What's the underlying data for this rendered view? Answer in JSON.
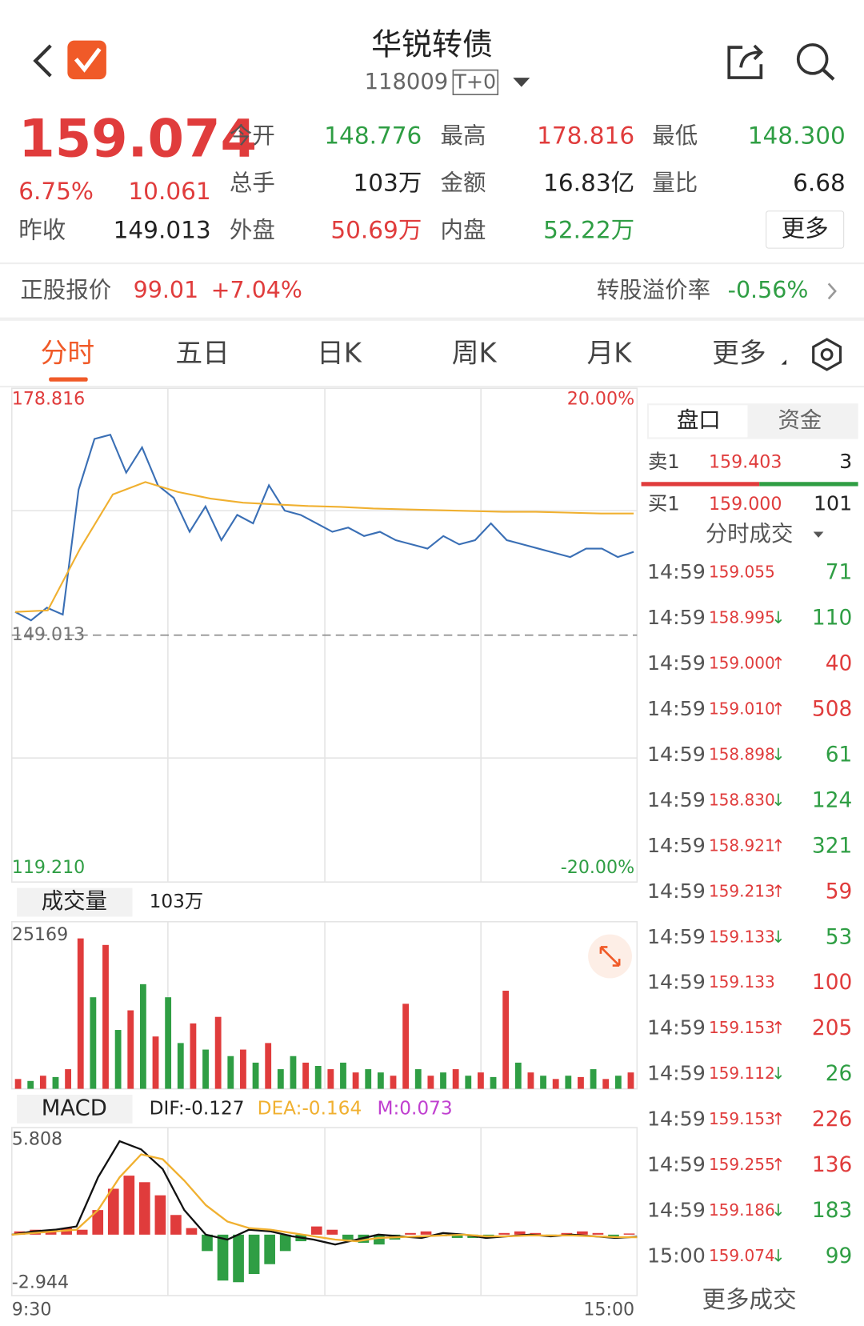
{
  "header": {
    "title": "华锐转债",
    "code": "118009",
    "tag": "T+0"
  },
  "quote": {
    "price": "159.074",
    "change_pct": "6.75%",
    "change": "10.061",
    "prev_close_label": "昨收",
    "prev_close": "149.013",
    "fields": [
      {
        "label": "今开",
        "value": "148.776",
        "color": "#2f9e44"
      },
      {
        "label": "最高",
        "value": "178.816",
        "color": "#e03c3c"
      },
      {
        "label": "最低",
        "value": "148.300",
        "color": "#2f9e44"
      },
      {
        "label": "总手",
        "value": "103万",
        "color": "#222222"
      },
      {
        "label": "金额",
        "value": "16.83亿",
        "color": "#222222"
      },
      {
        "label": "量比",
        "value": "6.68",
        "color": "#222222"
      },
      {
        "label": "外盘",
        "value": "50.69万",
        "color": "#e03c3c"
      },
      {
        "label": "内盘",
        "value": "52.22万",
        "color": "#2f9e44"
      }
    ],
    "more": "更多"
  },
  "stock": {
    "label": "正股报价",
    "price": "99.01",
    "change": "+7.04%",
    "premium_label": "转股溢价率",
    "premium": "-0.56%"
  },
  "tabs": [
    "分时",
    "五日",
    "日K",
    "周K",
    "月K",
    "更多"
  ],
  "chart_data": [
    {
      "type": "line",
      "ylim": [
        119.21,
        178.816
      ],
      "yticks": [
        {
          "value": 119.21,
          "label": "119.210"
        },
        {
          "value": 149.013,
          "label": "149.013"
        },
        {
          "value": 178.816,
          "label": "178.816"
        }
      ],
      "y2lim": [
        -20,
        20
      ],
      "y2ticks": [
        {
          "value": -20,
          "label": "-20.00%"
        },
        {
          "value": 20,
          "label": "20.00%"
        }
      ],
      "series": [
        {
          "color": "#3a6fb5",
          "values": [
            151.82,
            150.8,
            152.33,
            151.5,
            166.59,
            172.7,
            173.21,
            168.63,
            171.68,
            167.1,
            165.57,
            161.49,
            164.55,
            160.48,
            163.53,
            162.51,
            167.1,
            164.04,
            163.53,
            162.51,
            161.49,
            162.0,
            160.98,
            161.49,
            160.48,
            159.97,
            159.46,
            160.98,
            159.97,
            160.48,
            162.51,
            160.48,
            159.97,
            159.46,
            158.95,
            158.44,
            159.46,
            159.46,
            158.44,
            159.07
          ]
        },
        {
          "color": "#f0b030",
          "values": [
            151.82,
            152.0,
            159.5,
            166.0,
            167.5,
            166.3,
            165.5,
            165.0,
            164.8,
            164.6,
            164.5,
            164.3,
            164.2,
            164.1,
            164.0,
            163.9,
            163.9,
            163.8,
            163.7,
            163.7
          ]
        }
      ]
    },
    {
      "type": "bar",
      "title": "成交量",
      "subtitle": "103万",
      "ylim": [
        0,
        25169
      ],
      "yticks": [
        25169
      ],
      "values": [
        1500,
        1200,
        2000,
        1800,
        3000,
        23000,
        14000,
        22000,
        9000,
        12000,
        16000,
        8000,
        14000,
        7000,
        10000,
        6000,
        11000,
        5000,
        6000,
        4000,
        7000,
        3000,
        5000,
        4000,
        3500,
        3000,
        4000,
        2500,
        3000,
        2500,
        2000,
        13000,
        3000,
        2000,
        2500,
        3000,
        2000,
        2500,
        1800,
        15000,
        4000,
        2500,
        2000,
        1500,
        2000,
        1800,
        3000,
        1500,
        2000,
        2500
      ],
      "bar_colors": [
        "#e03c3c",
        "#2f9e44",
        "#e03c3c",
        "#2f9e44",
        "#e03c3c",
        "#e03c3c",
        "#2f9e44",
        "#e03c3c",
        "#2f9e44",
        "#e03c3c",
        "#2f9e44",
        "#e03c3c",
        "#2f9e44",
        "#2f9e44",
        "#e03c3c",
        "#2f9e44",
        "#e03c3c",
        "#2f9e44",
        "#e03c3c",
        "#2f9e44",
        "#e03c3c",
        "#2f9e44",
        "#2f9e44",
        "#e03c3c",
        "#2f9e44",
        "#e03c3c",
        "#2f9e44",
        "#e03c3c",
        "#2f9e44",
        "#2f9e44",
        "#e03c3c",
        "#e03c3c",
        "#2f9e44",
        "#e03c3c",
        "#2f9e44",
        "#e03c3c",
        "#2f9e44",
        "#e03c3c",
        "#2f9e44",
        "#e03c3c",
        "#2f9e44",
        "#e03c3c",
        "#2f9e44",
        "#e03c3c",
        "#2f9e44",
        "#e03c3c",
        "#2f9e44",
        "#e03c3c",
        "#2f9e44",
        "#e03c3c"
      ]
    },
    {
      "type": "macd",
      "title": "MACD",
      "indicators": [
        {
          "text": "DIF:-0.127",
          "color": "#222222"
        },
        {
          "text": "DEA:-0.164",
          "color": "#f0b030"
        },
        {
          "text": "M:0.073",
          "color": "#c040d0"
        }
      ],
      "ylim": [
        -2.944,
        5.808
      ],
      "yticks": [
        5.808,
        -2.944
      ],
      "xlabels": [
        "9:30",
        "15:00"
      ],
      "series": [
        {
          "color": "#111111",
          "values": [
            0,
            0.2,
            0.3,
            0.5,
            3.5,
            5.7,
            5.2,
            4.0,
            1.5,
            0.0,
            -0.3,
            0.3,
            0.2,
            -0.1,
            -0.3,
            -0.6,
            -0.3,
            0.0,
            -0.1,
            -0.2,
            0.1,
            0.0,
            -0.2,
            -0.1,
            0.0,
            -0.1,
            0.0,
            -0.1,
            -0.2,
            -0.13
          ]
        },
        {
          "color": "#f0b030",
          "values": [
            0,
            0.1,
            0.2,
            0.3,
            1.5,
            3.5,
            4.9,
            4.6,
            3.3,
            1.8,
            0.8,
            0.4,
            0.3,
            0.1,
            -0.1,
            -0.3,
            -0.4,
            -0.2,
            -0.15,
            -0.1,
            -0.05,
            0.0,
            -0.1,
            -0.1,
            -0.05,
            -0.05,
            -0.05,
            -0.1,
            -0.15,
            -0.16
          ]
        }
      ],
      "histogram": [
        0.2,
        0.3,
        0.3,
        0.4,
        0.3,
        1.5,
        2.8,
        3.6,
        3.2,
        2.4,
        1.2,
        0.4,
        -1.0,
        -2.8,
        -2.9,
        -2.4,
        -1.8,
        -1.0,
        -0.4,
        0.5,
        0.3,
        -0.3,
        -0.5,
        -0.6,
        -0.3,
        0.1,
        0.2,
        -0.1,
        -0.2,
        -0.2,
        -0.1,
        0.1,
        0.2,
        0.1,
        -0.1,
        0.1,
        0.2,
        0.1,
        -0.1,
        0.07
      ],
      "up_color": "#e03c3c",
      "down_color": "#2f9e44"
    }
  ],
  "order_book": {
    "tabs": [
      "盘口",
      "资金"
    ],
    "rows": [
      {
        "label": "卖1",
        "price": "159.403",
        "volume": "3"
      },
      {
        "label": "买1",
        "price": "159.000",
        "volume": "101"
      }
    ]
  },
  "trades": {
    "title": "分时成交",
    "more": "更多成交",
    "rows": [
      {
        "time": "14:59",
        "price": "159.055",
        "volume": "71",
        "color": "#2f9e44"
      },
      {
        "time": "14:59",
        "price": "158.995",
        "arrow": "↓",
        "arrow_color": "#2f9e44",
        "volume": "110",
        "color": "#2f9e44"
      },
      {
        "time": "14:59",
        "price": "159.000",
        "arrow": "↑",
        "arrow_color": "#e03c3c",
        "volume": "40",
        "color": "#e03c3c"
      },
      {
        "time": "14:59",
        "price": "159.010",
        "arrow": "↑",
        "arrow_color": "#e03c3c",
        "volume": "508",
        "color": "#e03c3c"
      },
      {
        "time": "14:59",
        "price": "158.898",
        "arrow": "↓",
        "arrow_color": "#2f9e44",
        "volume": "61",
        "color": "#2f9e44"
      },
      {
        "time": "14:59",
        "price": "158.830",
        "arrow": "↓",
        "arrow_color": "#2f9e44",
        "volume": "124",
        "color": "#2f9e44"
      },
      {
        "time": "14:59",
        "price": "158.921",
        "arrow": "↑",
        "arrow_color": "#e03c3c",
        "volume": "321",
        "color": "#2f9e44"
      },
      {
        "time": "14:59",
        "price": "159.213",
        "arrow": "↑",
        "arrow_color": "#e03c3c",
        "volume": "59",
        "color": "#e03c3c"
      },
      {
        "time": "14:59",
        "price": "159.133",
        "arrow": "↓",
        "arrow_color": "#2f9e44",
        "volume": "53",
        "color": "#2f9e44"
      },
      {
        "time": "14:59",
        "price": "159.133",
        "volume": "100",
        "color": "#e03c3c"
      },
      {
        "time": "14:59",
        "price": "159.153",
        "arrow": "↑",
        "arrow_color": "#e03c3c",
        "volume": "205",
        "color": "#e03c3c"
      },
      {
        "time": "14:59",
        "price": "159.112",
        "arrow": "↓",
        "arrow_color": "#2f9e44",
        "volume": "26",
        "color": "#2f9e44"
      },
      {
        "time": "14:59",
        "price": "159.153",
        "arrow": "↑",
        "arrow_color": "#e03c3c",
        "volume": "226",
        "color": "#e03c3c"
      },
      {
        "time": "14:59",
        "price": "159.255",
        "arrow": "↑",
        "arrow_color": "#e03c3c",
        "volume": "136",
        "color": "#e03c3c"
      },
      {
        "time": "14:59",
        "price": "159.186",
        "arrow": "↓",
        "arrow_color": "#2f9e44",
        "volume": "183",
        "color": "#2f9e44"
      },
      {
        "time": "15:00",
        "price": "159.074",
        "arrow": "↓",
        "arrow_color": "#2f9e44",
        "volume": "99",
        "color": "#2f9e44"
      }
    ]
  }
}
